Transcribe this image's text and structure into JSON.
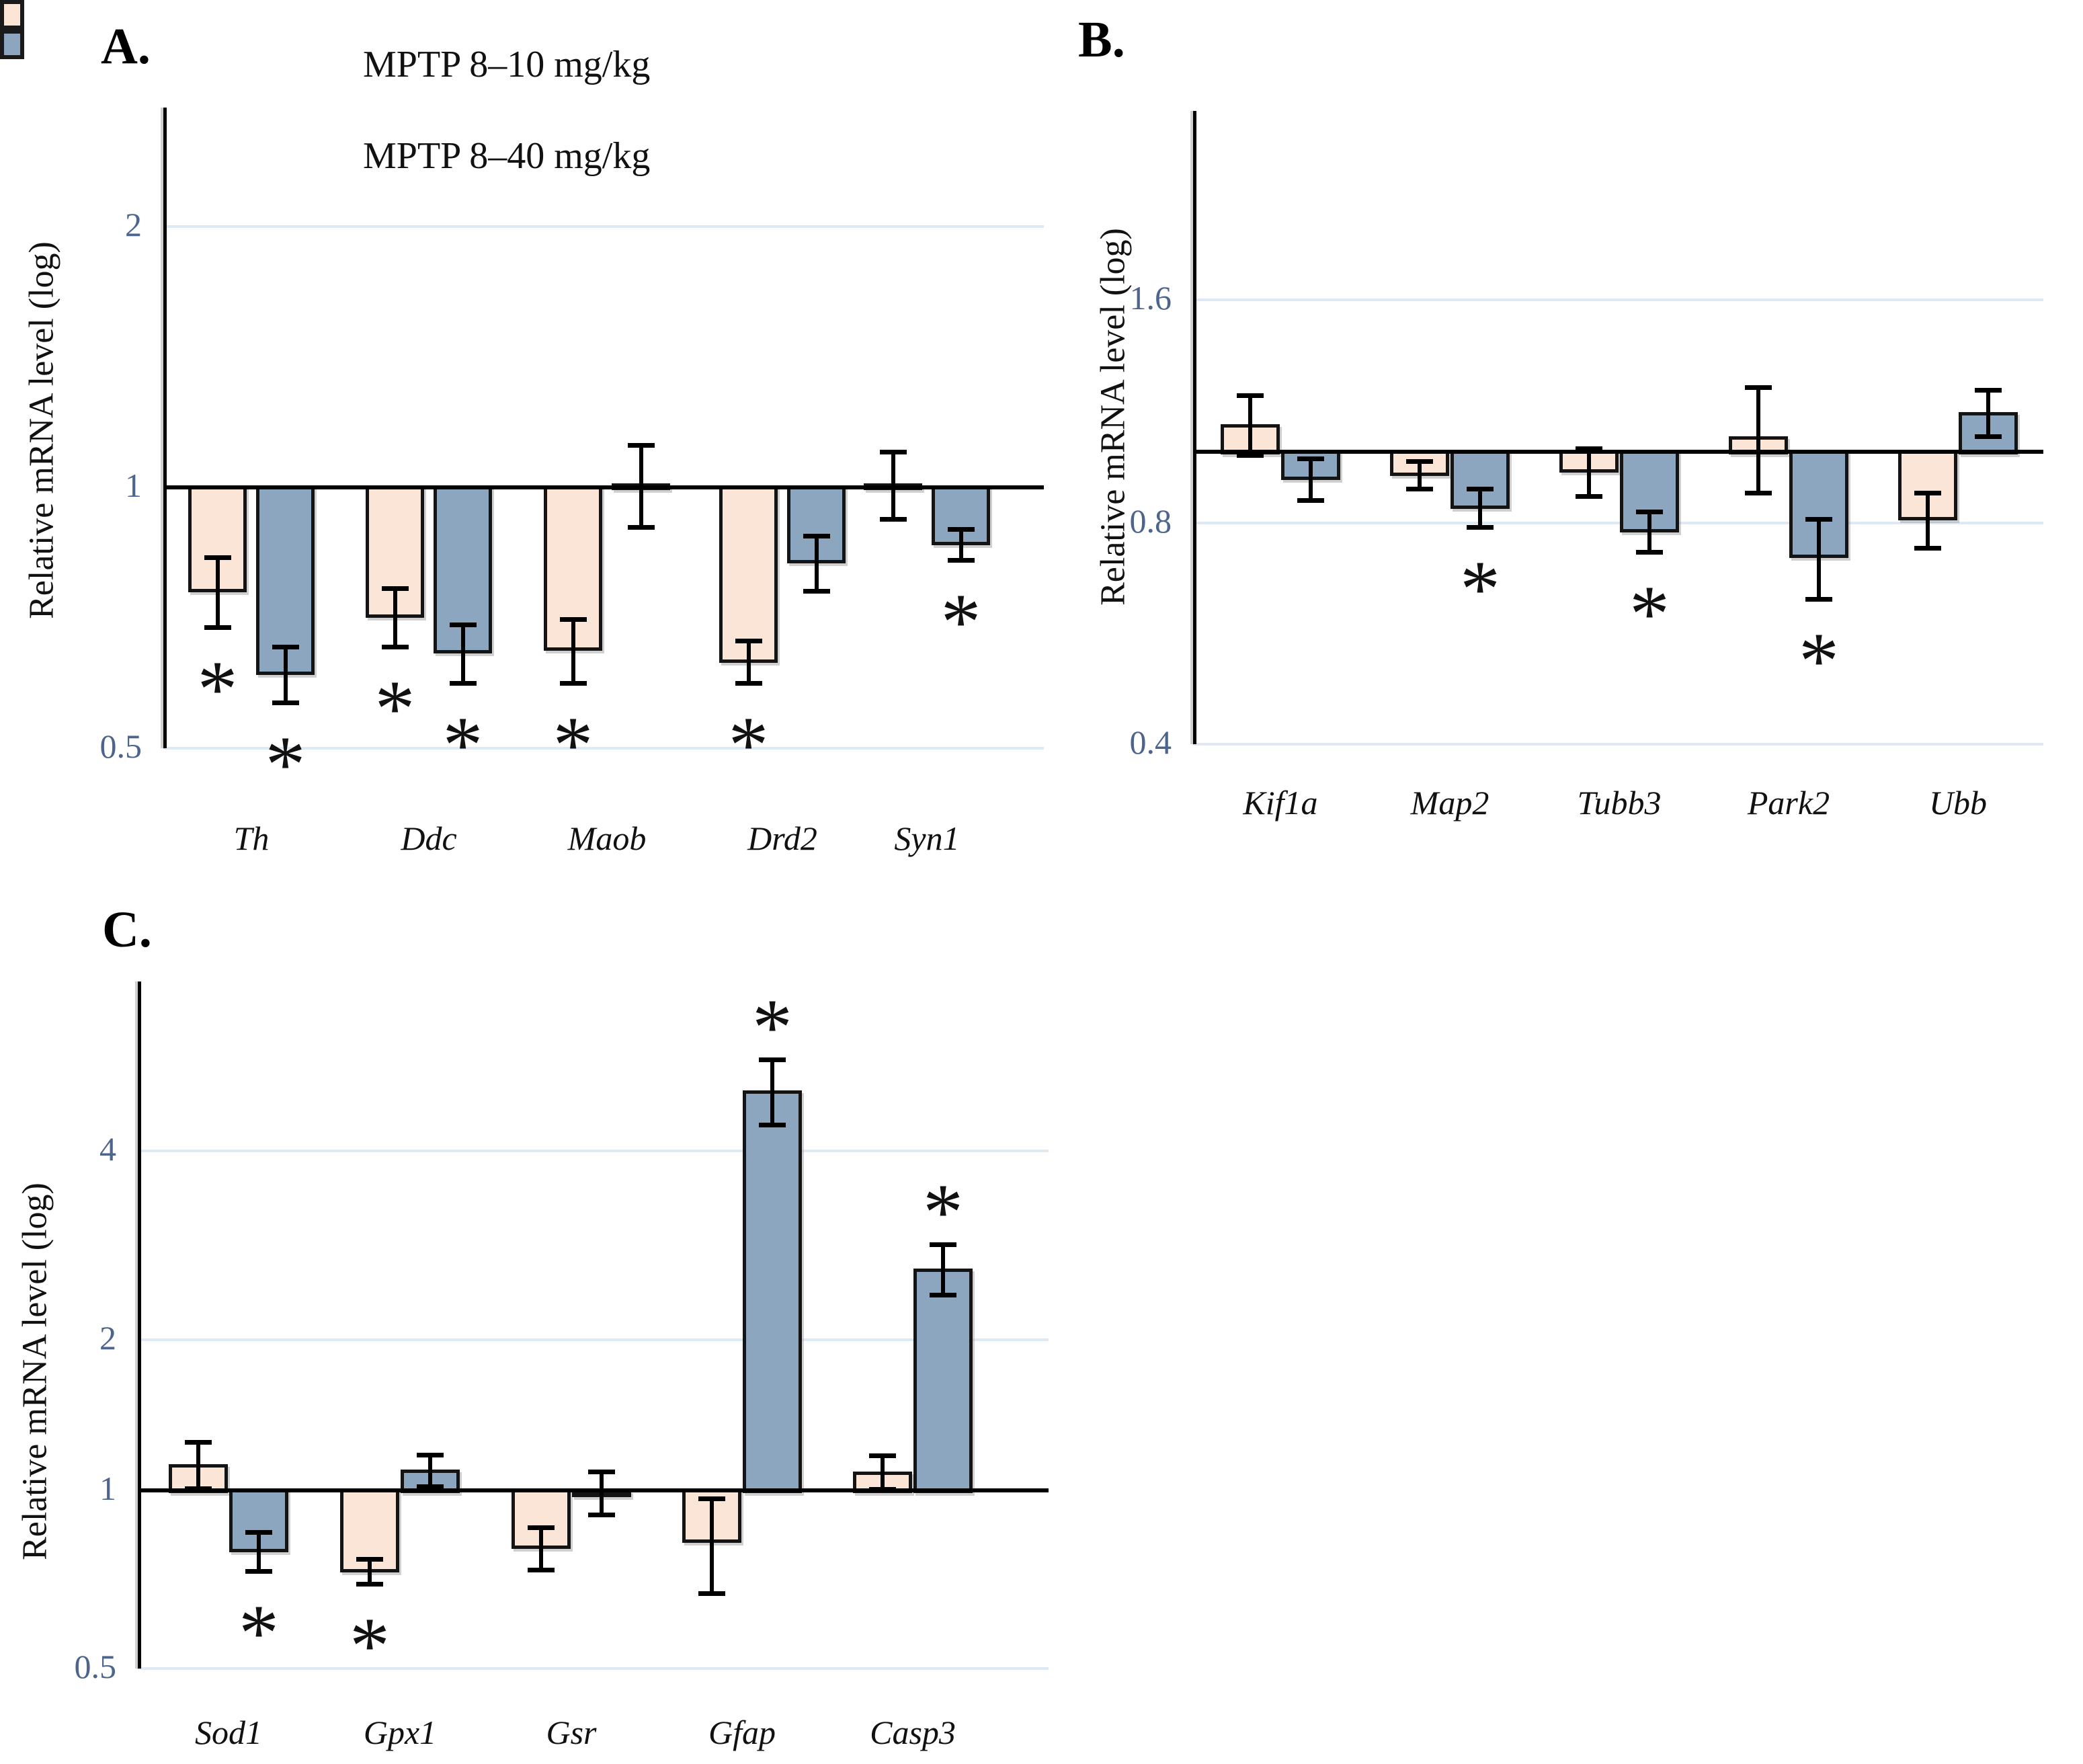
{
  "figure_title": "",
  "legend": {
    "items": [
      {
        "label": "MPTP 8–10 mg/kg",
        "color": "#fbe5d6"
      },
      {
        "label": "MPTP 8–40 mg/kg",
        "color": "#8da6c0"
      }
    ]
  },
  "colors": {
    "series1_fill": "#fbe5d6",
    "series2_fill": "#8da6c0",
    "bar_border": "#141414",
    "tick_text": "#4d648c",
    "gridline": "#dfe9f3",
    "axis": "#000000",
    "significance_marker": "#111111"
  },
  "chart_data": [
    {
      "type": "bar",
      "panel": "A.",
      "ylabel": "Relative mRNA level (log)",
      "yscale": "log2",
      "ylim": [
        0.5,
        2.3
      ],
      "grid": "horizontal-light",
      "yticks": [
        {
          "label": "2",
          "value": 2
        },
        {
          "label": "1",
          "value": 1
        },
        {
          "label": "0.5",
          "value": 0.5
        }
      ],
      "categories": [
        "Th",
        "Ddc",
        "Maob",
        "Drd2",
        "Syn1"
      ],
      "series": [
        {
          "name": "MPTP 8–10 mg/kg",
          "values": [
            0.76,
            0.71,
            0.65,
            0.63,
            1.01
          ],
          "errors": [
            0.07,
            0.055,
            0.055,
            0.035,
            0.09
          ],
          "significance": [
            "below",
            "below",
            "below",
            "below",
            null
          ]
        },
        {
          "name": "MPTP 8–40 mg/kg",
          "values": [
            0.61,
            0.645,
            1.01,
            0.82,
            0.86
          ],
          "errors": [
            0.045,
            0.05,
            0.11,
            0.06,
            0.035
          ],
          "significance": [
            "below",
            "below",
            null,
            null,
            "below"
          ]
        }
      ]
    },
    {
      "type": "bar",
      "panel": "B.",
      "ylabel": "Relative mRNA level (log)",
      "yscale": "log2",
      "ylim": [
        0.4,
        1.85
      ],
      "grid": "horizontal-light",
      "yticks": [
        {
          "label": "1.6",
          "value": 1.6
        },
        {
          "label": "0.8",
          "value": 0.8
        },
        {
          "label": "0.4",
          "value": 0.4
        }
      ],
      "categories": [
        "Kif1a",
        "Map2",
        "Tubb3",
        "Park2",
        "Ubb"
      ],
      "series": [
        {
          "name": "MPTP 8–10 mg/kg",
          "values": [
            1.09,
            0.93,
            0.94,
            1.05,
            0.81
          ],
          "errors": [
            0.1,
            0.04,
            0.07,
            0.17,
            0.07
          ],
          "significance": [
            null,
            null,
            null,
            null,
            null
          ]
        },
        {
          "name": "MPTP 8–40 mg/kg",
          "values": [
            0.92,
            0.84,
            0.78,
            0.72,
            1.13
          ],
          "errors": [
            0.06,
            0.05,
            0.05,
            0.09,
            0.08
          ],
          "significance": [
            null,
            "below",
            "below",
            "below",
            null
          ]
        }
      ]
    },
    {
      "type": "bar",
      "panel": "C.",
      "ylabel": "Relative mRNA level (log)",
      "yscale": "log2",
      "ylim": [
        0.5,
        5.8
      ],
      "grid": "horizontal-light",
      "yticks": [
        {
          "label": "4",
          "value": 4
        },
        {
          "label": "2",
          "value": 2
        },
        {
          "label": "1",
          "value": 1
        },
        {
          "label": "0.5",
          "value": 0.5
        }
      ],
      "categories": [
        "Sod1",
        "Gpx1",
        "Gsr",
        "Gfap",
        "Casp3"
      ],
      "series": [
        {
          "name": "MPTP 8–10 mg/kg",
          "values": [
            1.13,
            0.73,
            0.8,
            0.82,
            1.09
          ],
          "errors": [
            0.12,
            0.035,
            0.065,
            0.15,
            0.085
          ],
          "significance": [
            null,
            "below",
            null,
            null,
            null
          ]
        },
        {
          "name": "MPTP 8–40 mg/kg",
          "values": [
            0.79,
            1.1,
            1.0,
            5.0,
            2.6
          ],
          "errors": [
            0.06,
            0.08,
            0.09,
            0.6,
            0.24
          ],
          "significance": [
            "below",
            null,
            null,
            "above",
            "above"
          ]
        }
      ]
    }
  ]
}
